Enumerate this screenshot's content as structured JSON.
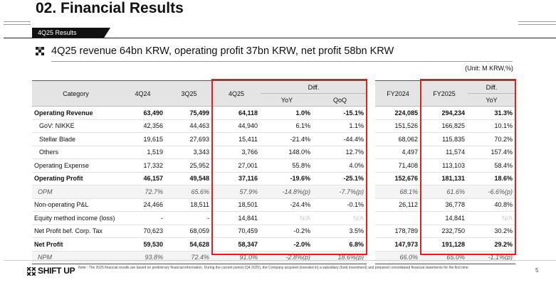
{
  "title": "02. Financial Results",
  "section_label": "4Q25 Results",
  "headline": "4Q25 revenue 64bn KRW, operating profit 37bn KRW, net profit 58bn KRW",
  "unit": "(Unit: M KRW,%)",
  "table": {
    "headers": {
      "category": "Category",
      "q4_24": "4Q24",
      "q3_25": "3Q25",
      "q4_25": "4Q25",
      "diff": "Diff.",
      "yoy": "YoY",
      "qoq": "QoQ",
      "fy2024": "FY2024",
      "fy2025": "FY2025",
      "diff_fy": "Diff.",
      "yoy_fy": "YoY"
    },
    "rows": [
      {
        "label": "Operating Revenue",
        "cells": [
          "63,490",
          "75,499",
          "64,118",
          "1.0%",
          "-15.1%",
          "224,085",
          "294,234",
          "31.3%"
        ]
      },
      {
        "label": "GoV: NIKKE",
        "cells": [
          "42,356",
          "44,463",
          "44,940",
          "6.1%",
          "1.1%",
          "151,526",
          "166,825",
          "10.1%"
        ]
      },
      {
        "label": "Stellar Blade",
        "cells": [
          "19,615",
          "27,693",
          "15,411",
          "-21.4%",
          "-44.4%",
          "68,062",
          "115,835",
          "70.2%"
        ]
      },
      {
        "label": "Others",
        "cells": [
          "1,519",
          "3,343",
          "3,766",
          "148.0%",
          "12.7%",
          "4,497",
          "11,574",
          "157.4%"
        ]
      },
      {
        "label": "Operating Expense",
        "cells": [
          "17,332",
          "25,952",
          "27,001",
          "55.8%",
          "4.0%",
          "71,408",
          "113,103",
          "58.4%"
        ]
      },
      {
        "label": "Operating Profit",
        "cells": [
          "46,157",
          "49,548",
          "37,116",
          "-19.6%",
          "-25.1%",
          "152,676",
          "181,131",
          "18.6%"
        ]
      },
      {
        "label": "OPM",
        "cells": [
          "72.7%",
          "65.6%",
          "57.9%",
          "-14.8%(p)",
          "-7.7%(p)",
          "68.1%",
          "61.6%",
          "-6.6%(p)"
        ]
      },
      {
        "label": "Non-operating P&L",
        "cells": [
          "24,466",
          "18,511",
          "18,501",
          "-24.4%",
          "-0.1%",
          "26,112",
          "36,778",
          "40.8%"
        ]
      },
      {
        "label": "Equity method income (loss)",
        "cells": [
          "-",
          "-",
          "14,841",
          "N/A",
          "N/A",
          null,
          "14,841",
          "N/A"
        ]
      },
      {
        "label": "Net Profit bef. Corp. Tax",
        "cells": [
          "70,623",
          "68,059",
          "70,459",
          "-0.2%",
          "3.5%",
          "178,789",
          "232,750",
          "30.2%"
        ]
      },
      {
        "label": "Net Profit",
        "cells": [
          "59,530",
          "54,628",
          "58,347",
          "-2.0%",
          "6.8%",
          "147,973",
          "191,128",
          "29.2%"
        ]
      },
      {
        "label": "NPM",
        "cells": [
          "93.8%",
          "72.4%",
          "91.0%",
          "-2.8%(p)",
          "18.6%(p)",
          "66.0%",
          "65.0%",
          "-1.1%(p)"
        ]
      }
    ]
  },
  "footer": {
    "logo": "SHIFT UP",
    "note": "Note : The 2025 financial results are based on preliminary financial information. During the current period (Q4 2025), the Company acquired (invested in) a subsidiary (fund investment) and prepared consolidated financial statements for the first time.",
    "page": "5"
  }
}
